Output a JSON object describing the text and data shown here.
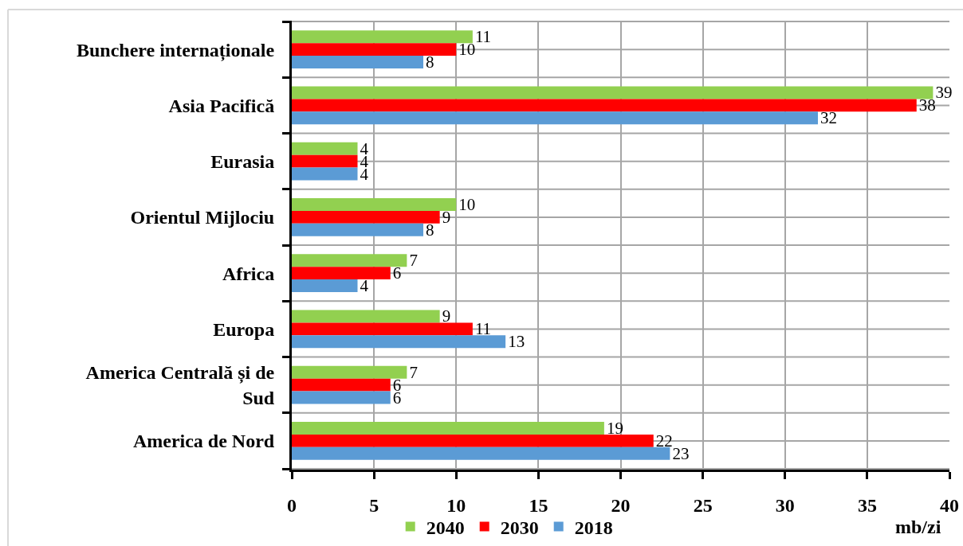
{
  "chart_data": {
    "type": "bar",
    "orientation": "horizontal",
    "categories": [
      "Bunchere internaționale",
      "Asia Pacifică",
      "Eurasia",
      "Orientul Mijlociu",
      "Africa",
      "Europa",
      "America Centrală și de Sud",
      "America de Nord"
    ],
    "series": [
      {
        "name": "2040",
        "color": "#92d050",
        "values": [
          11,
          39,
          4,
          10,
          7,
          9,
          7,
          19
        ]
      },
      {
        "name": "2030",
        "color": "#ff0000",
        "values": [
          10,
          38,
          4,
          9,
          6,
          11,
          6,
          22
        ]
      },
      {
        "name": "2018",
        "color": "#5b9bd5",
        "values": [
          8,
          32,
          4,
          8,
          4,
          13,
          6,
          23
        ]
      }
    ],
    "xlim": [
      0,
      40
    ],
    "xticks": [
      0,
      5,
      10,
      15,
      20,
      25,
      30,
      35,
      40
    ],
    "xlabel": "mb/zi",
    "grid": true,
    "legend": "bottom",
    "data_labels": true
  }
}
